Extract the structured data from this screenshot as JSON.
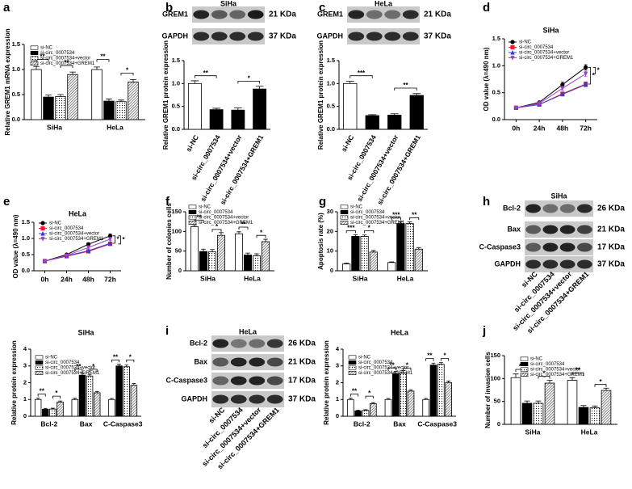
{
  "panel_labels": [
    "a",
    "b",
    "c",
    "d",
    "e",
    "f",
    "g",
    "h",
    "i",
    "j"
  ],
  "blots": [
    {
      "title": "SiHa",
      "rows": [
        {
          "protein": "GREM1",
          "size": "21 KDa"
        },
        {
          "protein": "GAPDH",
          "size": "37 KDa"
        }
      ]
    },
    {
      "title": "HeLa",
      "rows": [
        {
          "protein": "GREM1",
          "size": "21 KDa"
        },
        {
          "protein": "GAPDH",
          "size": "37 KDa"
        }
      ]
    },
    {
      "title": "SiHa",
      "rows": [
        {
          "protein": "Bcl-2",
          "size": "26 KDa"
        },
        {
          "protein": "Bax",
          "size": "21 KDa"
        },
        {
          "protein": "C-Caspase3",
          "size": "17 KDa"
        },
        {
          "protein": "GAPDH",
          "size": "37 KDa"
        }
      ],
      "lanes": [
        "si-NC",
        "si-circ_0007534",
        "si-circ_0007534+vector",
        "si-circ_0007534+GREM1"
      ]
    },
    {
      "title": "HeLa",
      "rows": [
        {
          "protein": "Bcl-2",
          "size": "26 KDa"
        },
        {
          "protein": "Bax",
          "size": "21 KDa"
        },
        {
          "protein": "C-Caspase3",
          "size": "17 KDa"
        },
        {
          "protein": "GAPDH",
          "size": "37 KDa"
        }
      ],
      "lanes": [
        "si-NC",
        "si-circ_0007534",
        "si-circ_0007534+vector",
        "si-circ_0007534+GREM1"
      ]
    }
  ],
  "chart_data": [
    {
      "type": "bar",
      "y_label": "Relative GREM1 mRNA expression",
      "categories": [
        "SiHa",
        "HeLa"
      ],
      "series": [
        {
          "name": "si-NC",
          "color": "#ffffff",
          "pattern": "solid",
          "values": [
            1.0,
            1.0
          ],
          "errors": [
            0.06,
            0.05
          ]
        },
        {
          "name": "si-circ_0007534",
          "color": "#000000",
          "pattern": "solid",
          "values": [
            0.45,
            0.37
          ],
          "errors": [
            0.04,
            0.04
          ]
        },
        {
          "name": "si-circ_0007534+vector",
          "color": "#ffffff",
          "pattern": "dots",
          "values": [
            0.46,
            0.36
          ],
          "errors": [
            0.04,
            0.03
          ]
        },
        {
          "name": "si-circ_0007534+GREM1",
          "color": "#888888",
          "pattern": "stripes",
          "values": [
            0.9,
            0.75
          ],
          "errors": [
            0.05,
            0.05
          ]
        }
      ],
      "ylim": [
        0,
        1.5
      ],
      "yticks": [
        {
          "value": 0,
          "label": "0.0"
        },
        {
          "value": 0.5,
          "label": "0.5"
        },
        {
          "value": 1,
          "label": "1.0"
        },
        {
          "value": 1.5,
          "label": "1.5"
        }
      ],
      "annotations": [
        "**",
        "**",
        "**",
        "*"
      ]
    },
    {
      "type": "bar",
      "y_label": "Relative GREM1 protein expression",
      "categories": [
        "si-NC",
        "si-circ_0007534",
        "si-circ_0007534+vector",
        "si-circ_0007534+GREM1"
      ],
      "values": [
        1.0,
        0.43,
        0.42,
        0.88
      ],
      "errors": [
        0.06,
        0.03,
        0.05,
        0.06
      ],
      "colors": [
        "#ffffff",
        "#000000",
        "#000000",
        "#000000"
      ],
      "ylim": [
        0,
        1.5
      ],
      "yticks": [
        {
          "value": 0,
          "label": "0.0"
        },
        {
          "value": 0.5,
          "label": "0.5"
        },
        {
          "value": 1,
          "label": "1.0"
        },
        {
          "value": 1.5,
          "label": "1.5"
        }
      ],
      "annotations": [
        "**",
        "*"
      ]
    },
    {
      "type": "bar",
      "y_label": "Relative GREM1 protein expression",
      "categories": [
        "si-NC",
        "si-circ_0007534",
        "si-circ_0007534+vector",
        "si-circ_0007534+GREM1"
      ],
      "values": [
        1.0,
        0.3,
        0.31,
        0.74
      ],
      "errors": [
        0.05,
        0.02,
        0.03,
        0.04
      ],
      "colors": [
        "#ffffff",
        "#000000",
        "#000000",
        "#000000"
      ],
      "ylim": [
        0,
        1.5
      ],
      "yticks": [
        {
          "value": 0,
          "label": "0.0"
        },
        {
          "value": 0.5,
          "label": "0.5"
        },
        {
          "value": 1,
          "label": "1.0"
        },
        {
          "value": 1.5,
          "label": "1.5"
        }
      ],
      "annotations": [
        "***",
        "**"
      ]
    },
    {
      "type": "line",
      "title": "SiHa",
      "y_label": "OD value (λ=490 nm)",
      "categories": [
        "0h",
        "24h",
        "48h",
        "72h"
      ],
      "series": [
        {
          "name": "si-NC",
          "color": "#000000",
          "marker": "circle",
          "values": [
            0.22,
            0.32,
            0.65,
            0.97
          ],
          "errors": [
            0.01,
            0.02,
            0.05,
            0.05
          ]
        },
        {
          "name": "si-circ_0007534",
          "color": "#e8202a",
          "marker": "square",
          "values": [
            0.22,
            0.28,
            0.48,
            0.66
          ],
          "errors": [
            0.01,
            0.02,
            0.03,
            0.04
          ]
        },
        {
          "name": "si-circ_0007534+vector",
          "color": "#3a3ad8",
          "marker": "triangle",
          "values": [
            0.22,
            0.28,
            0.47,
            0.65
          ],
          "errors": [
            0.01,
            0.02,
            0.03,
            0.04
          ]
        },
        {
          "name": "si-circ_0007534+GREM1",
          "color": "#a040c8",
          "marker": "down-triangle",
          "values": [
            0.22,
            0.3,
            0.58,
            0.85
          ],
          "errors": [
            0.01,
            0.02,
            0.04,
            0.05
          ]
        }
      ],
      "ylim": [
        0,
        1.5
      ],
      "yticks": [
        {
          "value": 0,
          "label": "0.0"
        },
        {
          "value": 0.5,
          "label": "0.5"
        },
        {
          "value": 1,
          "label": "1.0"
        },
        {
          "value": 1.5,
          "label": "1.5"
        }
      ],
      "annotations": [
        "*",
        "*"
      ]
    },
    {
      "type": "line",
      "title": "HeLa",
      "y_label": "OD value (λ=490 nm)",
      "categories": [
        "0h",
        "24h",
        "48h",
        "72h"
      ],
      "series": [
        {
          "name": "si-NC",
          "color": "#000000",
          "marker": "circle",
          "values": [
            0.3,
            0.5,
            0.82,
            1.08
          ],
          "errors": [
            0.01,
            0.02,
            0.05,
            0.06
          ]
        },
        {
          "name": "si-circ_0007534",
          "color": "#e8202a",
          "marker": "square",
          "values": [
            0.3,
            0.45,
            0.6,
            0.83
          ],
          "errors": [
            0.01,
            0.02,
            0.03,
            0.04
          ]
        },
        {
          "name": "si-circ_0007534+vector",
          "color": "#3a3ad8",
          "marker": "triangle",
          "values": [
            0.3,
            0.46,
            0.62,
            0.85
          ],
          "errors": [
            0.01,
            0.02,
            0.03,
            0.04
          ]
        },
        {
          "name": "si-circ_0007534+GREM1",
          "color": "#a040c8",
          "marker": "down-triangle",
          "values": [
            0.3,
            0.47,
            0.72,
            0.98
          ],
          "errors": [
            0.01,
            0.02,
            0.04,
            0.05
          ]
        }
      ],
      "ylim": [
        0,
        1.5
      ],
      "yticks": [
        {
          "value": 0,
          "label": "0.0"
        },
        {
          "value": 0.5,
          "label": "0.5"
        },
        {
          "value": 1,
          "label": "1.0"
        },
        {
          "value": 1.5,
          "label": "1.5"
        }
      ],
      "annotations": [
        "*",
        "*"
      ]
    },
    {
      "type": "bar",
      "y_label": "Number of colonies cells",
      "categories": [
        "SiHa",
        "HeLa"
      ],
      "series": [
        {
          "name": "si-NC",
          "color": "#ffffff",
          "pattern": "solid",
          "values": [
            112,
            94
          ],
          "errors": [
            5,
            5
          ]
        },
        {
          "name": "si-circ_0007534",
          "color": "#000000",
          "pattern": "solid",
          "values": [
            49,
            40
          ],
          "errors": [
            6,
            5
          ]
        },
        {
          "name": "si-circ_0007534+vector",
          "color": "#ffffff",
          "pattern": "dots",
          "values": [
            48,
            38
          ],
          "errors": [
            6,
            5
          ]
        },
        {
          "name": "si-circ_0007534+GREM1",
          "color": "#888888",
          "pattern": "stripes",
          "values": [
            90,
            74
          ],
          "errors": [
            7,
            6
          ]
        }
      ],
      "ylim": [
        0,
        150
      ],
      "yticks": [
        0,
        50,
        100,
        150
      ],
      "annotations": [
        "**",
        "*",
        "**",
        "*"
      ]
    },
    {
      "type": "bar",
      "y_label": "Apoptosis rate (%)",
      "categories": [
        "SiHa",
        "HeLa"
      ],
      "series": [
        {
          "name": "si-NC",
          "color": "#ffffff",
          "pattern": "solid",
          "values": [
            3.5,
            4.2
          ],
          "errors": [
            0.4,
            0.3
          ]
        },
        {
          "name": "si-circ_0007534",
          "color": "#000000",
          "pattern": "solid",
          "values": [
            17.5,
            24
          ],
          "errors": [
            0.8,
            1
          ]
        },
        {
          "name": "si-circ_0007534+vector",
          "color": "#ffffff",
          "pattern": "dots",
          "values": [
            17.5,
            24
          ],
          "errors": [
            0.7,
            0.9
          ]
        },
        {
          "name": "si-circ_0007534+GREM1",
          "color": "#888888",
          "pattern": "stripes",
          "values": [
            9.5,
            11
          ],
          "errors": [
            0.8,
            0.8
          ]
        }
      ],
      "ylim": [
        0,
        30
      ],
      "yticks": [
        0,
        10,
        20,
        30
      ],
      "annotations": [
        "***",
        "*",
        "***",
        "**"
      ]
    },
    {
      "type": "bar",
      "title": "SiHa",
      "y_label": "Relative protein expression",
      "categories": [
        "Bcl-2",
        "Bax",
        "C-Caspase3"
      ],
      "series": [
        {
          "name": "si-NC",
          "color": "#ffffff",
          "pattern": "solid",
          "values": [
            1,
            1,
            1
          ],
          "errors": [
            0.08,
            0.07,
            0.06
          ]
        },
        {
          "name": "si-circ_0007534",
          "color": "#000000",
          "pattern": "solid",
          "values": [
            0.42,
            2.45,
            3.0
          ],
          "errors": [
            0.05,
            0.12,
            0.1
          ]
        },
        {
          "name": "si-circ_0007534+vector",
          "color": "#ffffff",
          "pattern": "dots",
          "values": [
            0.43,
            2.4,
            2.95
          ],
          "errors": [
            0.05,
            0.1,
            0.1
          ]
        },
        {
          "name": "si-circ_0007534+GREM1",
          "color": "#888888",
          "pattern": "stripes",
          "values": [
            0.85,
            1.4,
            1.85
          ],
          "errors": [
            0.06,
            0.08,
            0.1
          ]
        }
      ],
      "ylim": [
        0,
        4
      ],
      "yticks": [
        0,
        1,
        2,
        3,
        4
      ],
      "annotations": [
        "**",
        "*",
        "**",
        "*",
        "**",
        "*"
      ]
    },
    {
      "type": "bar",
      "title": "HeLa",
      "y_label": "Relative protein expression",
      "categories": [
        "Bcl-2",
        "Bax",
        "C-Caspase3"
      ],
      "series": [
        {
          "name": "si-NC",
          "color": "#ffffff",
          "pattern": "solid",
          "values": [
            1,
            1,
            1
          ],
          "errors": [
            0.07,
            0.06,
            0.06
          ]
        },
        {
          "name": "si-circ_0007534",
          "color": "#000000",
          "pattern": "solid",
          "values": [
            0.32,
            2.55,
            3.05
          ],
          "errors": [
            0.04,
            0.12,
            0.12
          ]
        },
        {
          "name": "si-circ_0007534+vector",
          "color": "#ffffff",
          "pattern": "dots",
          "values": [
            0.35,
            2.6,
            3.1
          ],
          "errors": [
            0.04,
            0.12,
            0.1
          ]
        },
        {
          "name": "si-circ_0007534+GREM1",
          "color": "#888888",
          "pattern": "stripes",
          "values": [
            0.75,
            1.5,
            2.0
          ],
          "errors": [
            0.06,
            0.08,
            0.1
          ]
        }
      ],
      "ylim": [
        0,
        4
      ],
      "yticks": [
        0,
        1,
        2,
        3,
        4
      ],
      "annotations": [
        "**",
        "*",
        "**",
        "*",
        "**",
        "*"
      ]
    },
    {
      "type": "bar",
      "y_label": "Number of invasion cells",
      "categories": [
        "SiHa",
        "HeLa"
      ],
      "series": [
        {
          "name": "si-NC",
          "color": "#ffffff",
          "pattern": "solid",
          "values": [
            102,
            96
          ],
          "errors": [
            8,
            6
          ]
        },
        {
          "name": "si-circ_0007534",
          "color": "#000000",
          "pattern": "solid",
          "values": [
            46,
            37
          ],
          "errors": [
            5,
            4
          ]
        },
        {
          "name": "si-circ_0007534+vector",
          "color": "#ffffff",
          "pattern": "dots",
          "values": [
            46,
            36
          ],
          "errors": [
            5,
            4
          ]
        },
        {
          "name": "si-circ_0007534+GREM1",
          "color": "#888888",
          "pattern": "stripes",
          "values": [
            90,
            74
          ],
          "errors": [
            6,
            5
          ]
        }
      ],
      "ylim": [
        0,
        150
      ],
      "yticks": [
        0,
        50,
        100,
        150
      ],
      "annotations": [
        "**",
        "*",
        "**",
        "*"
      ]
    }
  ]
}
